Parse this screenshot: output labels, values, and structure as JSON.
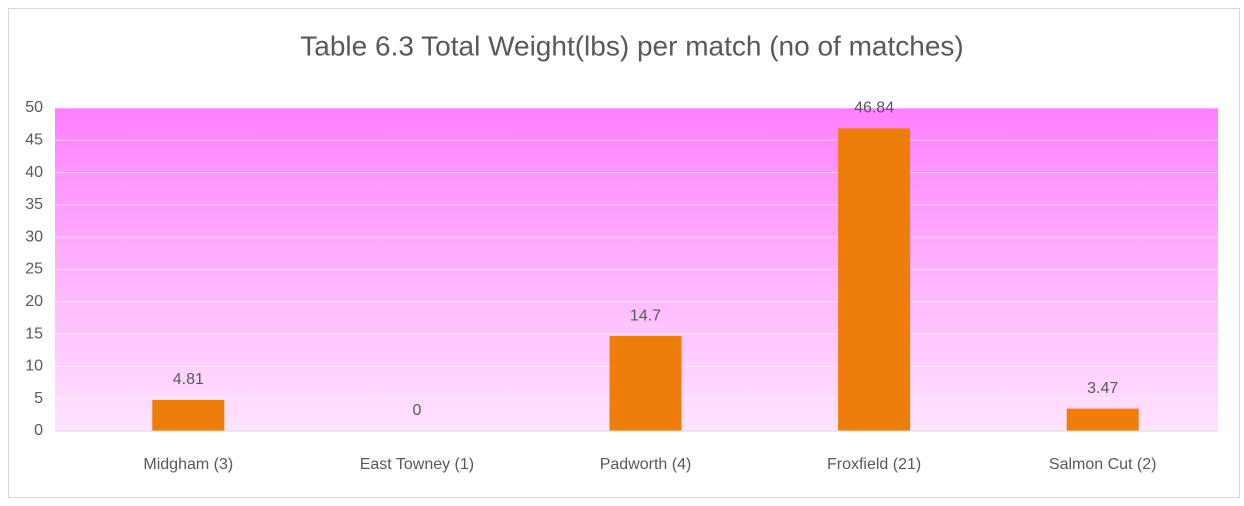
{
  "chart_data": {
    "type": "bar",
    "title": "Table 6.3 Total Weight(lbs) per  match (no of matches)",
    "categories": [
      "Midgham (3)",
      "East Towney (1)",
      "Padworth (4)",
      "Froxfield (21)",
      "Salmon Cut (2)"
    ],
    "values": [
      4.81,
      0,
      14.7,
      46.84,
      3.47
    ],
    "color": "#ef7d0a",
    "ylim": [
      0,
      50
    ],
    "yticks": [
      0,
      5,
      10,
      15,
      20,
      25,
      30,
      35,
      40,
      45,
      50
    ],
    "grid": true,
    "data_labels": true
  }
}
